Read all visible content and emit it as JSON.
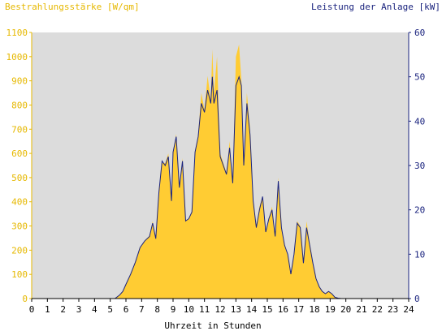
{
  "chart_data": {
    "type": "area",
    "title": "",
    "xlabel": "Uhrzeit in Stunden",
    "ylabel_left": "Bestrahlungsstärke [W/qm]",
    "ylabel_right": "Leistung der Anlage [kW]",
    "xlim": [
      0,
      24
    ],
    "ylim_left": [
      0,
      1100
    ],
    "ylim_right": [
      0,
      60
    ],
    "x_ticks": [
      "0",
      "1",
      "2",
      "3",
      "4",
      "5",
      "6",
      "7",
      "8",
      "9",
      "10",
      "11",
      "12",
      "13",
      "14",
      "15",
      "16",
      "17",
      "18",
      "19",
      "20",
      "21",
      "22",
      "23",
      "24"
    ],
    "y_ticks_left": [
      "0",
      "100",
      "200",
      "300",
      "400",
      "500",
      "600",
      "700",
      "800",
      "900",
      "1000",
      "1100"
    ],
    "y_ticks_right": [
      "0",
      "10",
      "20",
      "30",
      "40",
      "50",
      "60"
    ],
    "grid": false,
    "colors": {
      "irradiance_fill": "#FFCC33",
      "power_line": "#1A237E",
      "plot_background": "#DCDCDC",
      "left_axis_text": "#E6B800",
      "right_axis_text": "#1A237E"
    },
    "series": [
      {
        "name": "Bestrahlungsstärke [W/qm]",
        "axis": "left",
        "x": [
          0,
          5.3,
          5.6,
          5.8,
          6.0,
          6.3,
          6.6,
          6.9,
          7.2,
          7.5,
          7.7,
          7.9,
          8.1,
          8.3,
          8.5,
          8.7,
          8.9,
          9.0,
          9.2,
          9.4,
          9.6,
          9.8,
          10.0,
          10.2,
          10.4,
          10.6,
          10.8,
          11.0,
          11.2,
          11.4,
          11.5,
          11.6,
          11.8,
          12.0,
          12.2,
          12.4,
          12.6,
          12.8,
          13.0,
          13.2,
          13.35,
          13.5,
          13.7,
          13.9,
          14.1,
          14.3,
          14.5,
          14.7,
          14.9,
          15.1,
          15.3,
          15.5,
          15.7,
          15.9,
          16.1,
          16.3,
          16.5,
          16.7,
          16.9,
          17.1,
          17.3,
          17.5,
          17.7,
          17.9,
          18.1,
          18.3,
          18.5,
          18.7,
          18.9,
          19.1,
          19.3,
          19.5,
          19.7,
          20.0,
          24
        ],
        "values": [
          0,
          0,
          15,
          30,
          60,
          100,
          150,
          210,
          240,
          260,
          320,
          250,
          450,
          560,
          560,
          600,
          400,
          600,
          680,
          450,
          580,
          320,
          330,
          360,
          600,
          680,
          850,
          780,
          920,
          820,
          1030,
          850,
          1000,
          600,
          560,
          520,
          650,
          480,
          1000,
          1050,
          900,
          550,
          850,
          700,
          400,
          300,
          380,
          420,
          280,
          330,
          380,
          260,
          500,
          300,
          220,
          180,
          100,
          180,
          320,
          300,
          150,
          320,
          230,
          150,
          80,
          50,
          30,
          20,
          30,
          20,
          5,
          2,
          0,
          0,
          0
        ]
      },
      {
        "name": "Leistung der Anlage [kW]",
        "axis": "right",
        "x": [
          0,
          5.3,
          5.6,
          5.8,
          6.0,
          6.3,
          6.6,
          6.9,
          7.2,
          7.5,
          7.7,
          7.9,
          8.1,
          8.3,
          8.5,
          8.7,
          8.9,
          9.0,
          9.2,
          9.4,
          9.6,
          9.8,
          10.0,
          10.2,
          10.4,
          10.6,
          10.8,
          11.0,
          11.2,
          11.4,
          11.5,
          11.6,
          11.8,
          12.0,
          12.2,
          12.4,
          12.6,
          12.8,
          13.0,
          13.2,
          13.35,
          13.5,
          13.7,
          13.9,
          14.1,
          14.3,
          14.5,
          14.7,
          14.9,
          15.1,
          15.3,
          15.5,
          15.7,
          15.9,
          16.1,
          16.3,
          16.5,
          16.7,
          16.9,
          17.1,
          17.3,
          17.5,
          17.7,
          17.9,
          18.1,
          18.3,
          18.5,
          18.7,
          18.9,
          19.1,
          19.3,
          19.5,
          19.7,
          20.0,
          24
        ],
        "values": [
          0,
          0,
          0.8,
          1.6,
          3.2,
          5.5,
          8.2,
          11.5,
          13,
          14,
          17,
          13.5,
          24,
          31,
          30,
          32,
          22,
          33,
          36.5,
          25,
          31,
          17.5,
          18,
          19.5,
          33,
          36.5,
          44,
          42,
          47,
          44,
          50,
          44,
          47,
          32,
          30,
          28,
          34,
          26,
          48,
          50,
          48,
          30,
          44,
          37,
          22,
          16,
          20,
          23,
          15,
          18,
          20,
          14,
          26.5,
          16,
          12,
          10,
          5.5,
          10,
          17,
          16,
          8,
          16,
          12,
          8,
          4.5,
          2.7,
          1.6,
          1.1,
          1.6,
          1.1,
          0.3,
          0.1,
          0,
          0,
          0
        ]
      }
    ]
  }
}
